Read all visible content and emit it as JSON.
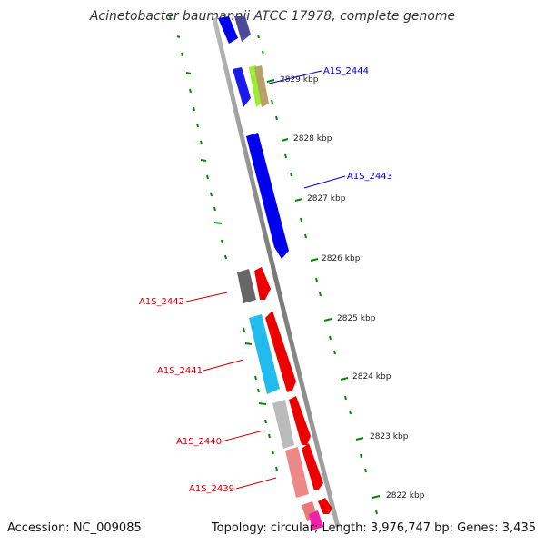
{
  "title": "Acinetobacter baumannii ATCC 17978, complete genome",
  "accession": "Accession: NC_009085",
  "summary": "Topology: circular; Length: 3,976,747 bp; Genes: 3,435",
  "kbp_labels": [
    "2829 kbp",
    "2828 kbp",
    "2827 kbp",
    "2826 kbp",
    "2825 kbp",
    "2824 kbp",
    "2823 kbp",
    "2822 kbp"
  ],
  "gene_labels": [
    {
      "name": "A1S_2444",
      "color": "#0000cc"
    },
    {
      "name": "A1S_2443",
      "color": "#0000cc"
    },
    {
      "name": "A1S_2442",
      "color": "#cc0000"
    },
    {
      "name": "A1S_2441",
      "color": "#cc0000"
    },
    {
      "name": "A1S_2440",
      "color": "#cc0000"
    },
    {
      "name": "A1S_2439",
      "color": "#cc0000"
    }
  ],
  "colors": {
    "forward_strand": "#ff0000",
    "reverse_strand": "#0000ff",
    "backbone": "#888888",
    "tick": "#008800"
  }
}
